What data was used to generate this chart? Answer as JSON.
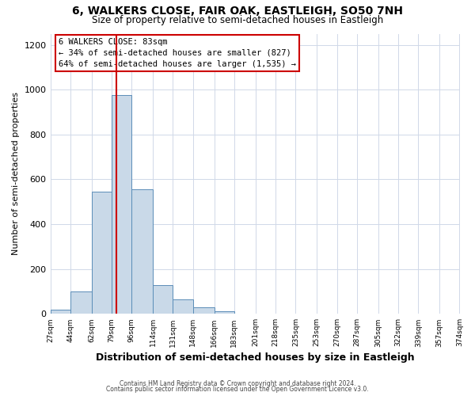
{
  "title": "6, WALKERS CLOSE, FAIR OAK, EASTLEIGH, SO50 7NH",
  "subtitle": "Size of property relative to semi-detached houses in Eastleigh",
  "xlabel": "Distribution of semi-detached houses by size in Eastleigh",
  "ylabel": "Number of semi-detached properties",
  "bin_labels": [
    "27sqm",
    "44sqm",
    "62sqm",
    "79sqm",
    "96sqm",
    "114sqm",
    "131sqm",
    "148sqm",
    "166sqm",
    "183sqm",
    "201sqm",
    "218sqm",
    "235sqm",
    "253sqm",
    "270sqm",
    "287sqm",
    "305sqm",
    "322sqm",
    "339sqm",
    "357sqm",
    "374sqm"
  ],
  "bin_edges": [
    27,
    44,
    62,
    79,
    96,
    114,
    131,
    148,
    166,
    183,
    201,
    218,
    235,
    253,
    270,
    287,
    305,
    322,
    339,
    357,
    374
  ],
  "bar_values": [
    20,
    100,
    545,
    975,
    555,
    130,
    63,
    30,
    12,
    0,
    0,
    0,
    0,
    0,
    0,
    0,
    0,
    0,
    0,
    0
  ],
  "bar_color": "#c9d9e8",
  "bar_edge_color": "#5b8db8",
  "property_value": 83,
  "vline_color": "#cc0000",
  "annotation_title": "6 WALKERS CLOSE: 83sqm",
  "annotation_line1": "← 34% of semi-detached houses are smaller (827)",
  "annotation_line2": "64% of semi-detached houses are larger (1,535) →",
  "annotation_box_edge": "#cc0000",
  "ylim": [
    0,
    1250
  ],
  "yticks": [
    0,
    200,
    400,
    600,
    800,
    1000,
    1200
  ],
  "footer1": "Contains HM Land Registry data © Crown copyright and database right 2024.",
  "footer2": "Contains public sector information licensed under the Open Government Licence v3.0.",
  "background_color": "#ffffff",
  "grid_color": "#d0d8e8"
}
